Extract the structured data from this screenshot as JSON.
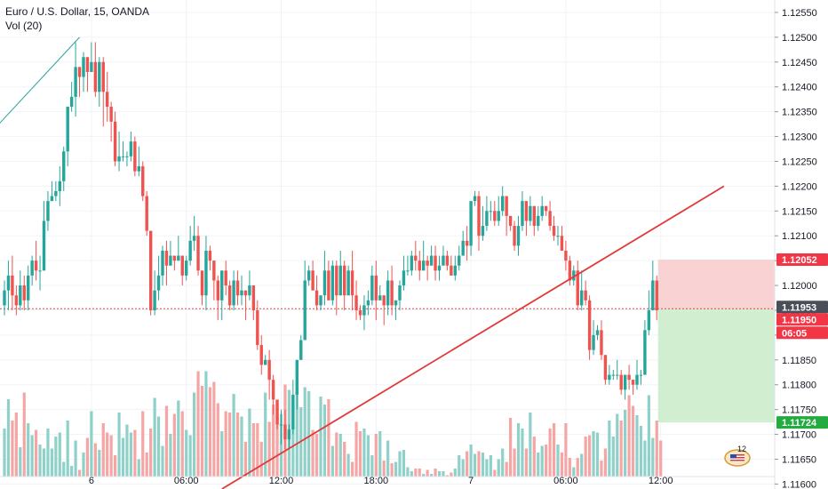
{
  "header": {
    "title": "Euro / U.S. Dollar, 15, OANDA",
    "volume_label": "Vol (20)"
  },
  "badges": {
    "notification_count": "12"
  },
  "colors": {
    "up": "#26a69a",
    "down": "#ef5350",
    "vol_up": "#8fd1c9",
    "vol_down": "#f5a6a4",
    "trendline": "#e03a3a",
    "grid": "#f0f3f7",
    "current_price_line": "#e0454b",
    "stop_zone": "#f8c8c8",
    "target_zone": "#c9ebc9",
    "label_dark": "#4a4e59",
    "label_red": "#f23645",
    "label_green": "#22ab3f"
  },
  "chart_data": {
    "type": "candlestick",
    "symbol": "Euro / U.S. Dollar, 15, OANDA",
    "indicator": "Vol (20)",
    "ylim": [
      1.1159,
      1.12575
    ],
    "y_ticks": [
      "1.11600",
      "1.11650",
      "1.11700",
      "1.11750",
      "1.11800",
      "1.11850",
      "1.11900",
      "1.11950",
      "1.12000",
      "1.12050",
      "1.12100",
      "1.12150",
      "1.12200",
      "1.12250",
      "1.12300",
      "1.12350",
      "1.12400",
      "1.12450",
      "1.12500",
      "1.12550"
    ],
    "x_ticks": [
      {
        "index": 22,
        "label": "6"
      },
      {
        "index": 46,
        "label": "06:00"
      },
      {
        "index": 70,
        "label": "12:00"
      },
      {
        "index": 94,
        "label": "18:00"
      },
      {
        "index": 118,
        "label": "7"
      },
      {
        "index": 142,
        "label": "06:00"
      },
      {
        "index": 166,
        "label": "12:00"
      }
    ],
    "grid": true,
    "price_labels": {
      "stop": "1.12052",
      "current": "1.11953",
      "last": "1.11950",
      "countdown": "06:05",
      "target": "1.11724"
    },
    "position_zone": {
      "start_index": 166,
      "stop": 1.12052,
      "entry": 1.11953,
      "target": 1.11724
    },
    "trendlines": [
      {
        "from": [
          -2,
          1.1232
        ],
        "to": [
          19,
          1.125
        ]
      },
      {
        "from": [
          55,
          1.1159
        ],
        "to": [
          182,
          1.122
        ]
      }
    ],
    "candles": [
      [
        1.1196,
        1.1199,
        1.1201,
        1.1194
      ],
      [
        1.1199,
        1.1202,
        1.1205,
        1.1195
      ],
      [
        1.1202,
        1.1198,
        1.1206,
        1.1195
      ],
      [
        1.1198,
        1.1196,
        1.12,
        1.1194
      ],
      [
        1.1196,
        1.12,
        1.1203,
        1.1195
      ],
      [
        1.12,
        1.1197,
        1.1202,
        1.1195
      ],
      [
        1.1197,
        1.1202,
        1.1204,
        1.1195
      ],
      [
        1.1202,
        1.1205,
        1.1206,
        1.12
      ],
      [
        1.1205,
        1.1203,
        1.1209,
        1.1201
      ],
      [
        1.1203,
        1.1203,
        1.1206,
        1.1199
      ],
      [
        1.1203,
        1.1213,
        1.1217,
        1.1203
      ],
      [
        1.1213,
        1.1217,
        1.1219,
        1.1211
      ],
      [
        1.1217,
        1.1218,
        1.1221,
        1.1217
      ],
      [
        1.1218,
        1.1219,
        1.1221,
        1.1217
      ],
      [
        1.1219,
        1.1221,
        1.1224,
        1.1216
      ],
      [
        1.1221,
        1.1227,
        1.1228,
        1.1219
      ],
      [
        1.1227,
        1.1236,
        1.1236,
        1.1224
      ],
      [
        1.1236,
        1.1238,
        1.1241,
        1.1235
      ],
      [
        1.1238,
        1.1244,
        1.1249,
        1.1234
      ],
      [
        1.1244,
        1.1242,
        1.1244,
        1.1238
      ],
      [
        1.1242,
        1.1246,
        1.1247,
        1.1239
      ],
      [
        1.1246,
        1.1243,
        1.1245,
        1.1239
      ],
      [
        1.1243,
        1.1245,
        1.1249,
        1.1244
      ],
      [
        1.1245,
        1.1239,
        1.1249,
        1.1238
      ],
      [
        1.1239,
        1.1245,
        1.1246,
        1.1236
      ],
      [
        1.1245,
        1.1239,
        1.1246,
        1.1232
      ],
      [
        1.1239,
        1.1236,
        1.1243,
        1.1233
      ],
      [
        1.1236,
        1.1233,
        1.1237,
        1.1229
      ],
      [
        1.1233,
        1.1225,
        1.1235,
        1.1224
      ],
      [
        1.1225,
        1.1226,
        1.1231,
        1.1223
      ],
      [
        1.1226,
        1.1226,
        1.1229,
        1.1225
      ],
      [
        1.1226,
        1.1226,
        1.1227,
        1.1224
      ],
      [
        1.1226,
        1.1229,
        1.1231,
        1.1225
      ],
      [
        1.1229,
        1.1223,
        1.123,
        1.1222
      ],
      [
        1.1223,
        1.1224,
        1.1228,
        1.1222
      ],
      [
        1.1224,
        1.1218,
        1.1225,
        1.1217
      ],
      [
        1.1218,
        1.1211,
        1.1219,
        1.121
      ],
      [
        1.1211,
        1.1195,
        1.1211,
        1.1194
      ],
      [
        1.1195,
        1.1199,
        1.1203,
        1.1194
      ],
      [
        1.1199,
        1.1202,
        1.1206,
        1.1197
      ],
      [
        1.1202,
        1.1207,
        1.1208,
        1.12
      ],
      [
        1.1207,
        1.1204,
        1.1209,
        1.12
      ],
      [
        1.1204,
        1.1206,
        1.1209,
        1.1204
      ],
      [
        1.1206,
        1.1205,
        1.1206,
        1.1203
      ],
      [
        1.1205,
        1.1206,
        1.121,
        1.1205
      ],
      [
        1.1206,
        1.1202,
        1.1206,
        1.12
      ],
      [
        1.1202,
        1.1205,
        1.1206,
        1.1201
      ],
      [
        1.1205,
        1.1209,
        1.1212,
        1.1204
      ],
      [
        1.1209,
        1.121,
        1.1214,
        1.1207
      ],
      [
        1.121,
        1.1203,
        1.1212,
        1.1202
      ],
      [
        1.1203,
        1.1198,
        1.1203,
        1.1196
      ],
      [
        1.1198,
        1.1207,
        1.121,
        1.1195
      ],
      [
        1.1207,
        1.1205,
        1.1208,
        1.1203
      ],
      [
        1.1205,
        1.1201,
        1.1205,
        1.1197
      ],
      [
        1.1201,
        1.1197,
        1.1202,
        1.1193
      ],
      [
        1.1197,
        1.1203,
        1.1203,
        1.1193
      ],
      [
        1.1203,
        1.12,
        1.1205,
        1.1198
      ],
      [
        1.12,
        1.1196,
        1.1201,
        1.1195
      ],
      [
        1.1196,
        1.1201,
        1.1203,
        1.1195
      ],
      [
        1.1201,
        1.1198,
        1.1203,
        1.1196
      ],
      [
        1.1198,
        1.1199,
        1.1202,
        1.1196
      ],
      [
        1.1199,
        1.1198,
        1.1199,
        1.1193
      ],
      [
        1.1198,
        1.12,
        1.1203,
        1.1197
      ],
      [
        1.12,
        1.1195,
        1.12,
        1.1193
      ],
      [
        1.1195,
        1.1188,
        1.1197,
        1.1187
      ],
      [
        1.1188,
        1.1184,
        1.119,
        1.1182
      ],
      [
        1.1184,
        1.1185,
        1.1186,
        1.1184
      ],
      [
        1.1185,
        1.1181,
        1.1187,
        1.1177
      ],
      [
        1.1181,
        1.1177,
        1.1182,
        1.1174
      ],
      [
        1.1177,
        1.1172,
        1.1177,
        1.1171
      ],
      [
        1.1172,
        1.1172,
        1.1175,
        1.1168
      ],
      [
        1.1172,
        1.1169,
        1.1175,
        1.1167
      ],
      [
        1.1169,
        1.1171,
        1.1172,
        1.1167
      ],
      [
        1.1171,
        1.1178,
        1.1181,
        1.117
      ],
      [
        1.1178,
        1.1185,
        1.1185,
        1.1175
      ],
      [
        1.1185,
        1.1189,
        1.119,
        1.1185
      ],
      [
        1.1189,
        1.1201,
        1.1205,
        1.1189
      ],
      [
        1.1201,
        1.1203,
        1.1204,
        1.12
      ],
      [
        1.1203,
        1.1199,
        1.1205,
        1.1199
      ],
      [
        1.1199,
        1.1196,
        1.1202,
        1.1195
      ],
      [
        1.1196,
        1.1198,
        1.1198,
        1.1195
      ],
      [
        1.1198,
        1.1203,
        1.1207,
        1.1196
      ],
      [
        1.1203,
        1.1197,
        1.1205,
        1.1197
      ],
      [
        1.1197,
        1.1204,
        1.1205,
        1.1196
      ],
      [
        1.1204,
        1.1198,
        1.1205,
        1.1194
      ],
      [
        1.1198,
        1.1204,
        1.1207,
        1.1198
      ],
      [
        1.1204,
        1.1198,
        1.1205,
        1.1195
      ],
      [
        1.1198,
        1.1203,
        1.1204,
        1.1198
      ],
      [
        1.1203,
        1.1198,
        1.1207,
        1.1195
      ],
      [
        1.1198,
        1.1195,
        1.1201,
        1.1193
      ],
      [
        1.1195,
        1.1194,
        1.1196,
        1.1193
      ],
      [
        1.1194,
        1.1196,
        1.1198,
        1.1191
      ],
      [
        1.1196,
        1.1197,
        1.1199,
        1.1194
      ],
      [
        1.1197,
        1.1202,
        1.1204,
        1.1196
      ],
      [
        1.1202,
        1.1197,
        1.1205,
        1.1193
      ],
      [
        1.1197,
        1.1198,
        1.12,
        1.1197
      ],
      [
        1.1198,
        1.1196,
        1.1198,
        1.1192
      ],
      [
        1.1196,
        1.1201,
        1.1203,
        1.1194
      ],
      [
        1.1201,
        1.1196,
        1.1204,
        1.1194
      ],
      [
        1.1196,
        1.1197,
        1.1197,
        1.1193
      ],
      [
        1.1197,
        1.12,
        1.1201,
        1.1195
      ],
      [
        1.12,
        1.1203,
        1.1206,
        1.1199
      ],
      [
        1.1203,
        1.1203,
        1.1206,
        1.1202
      ],
      [
        1.1203,
        1.1206,
        1.1207,
        1.1202
      ],
      [
        1.1206,
        1.1205,
        1.1209,
        1.1203
      ],
      [
        1.1205,
        1.1203,
        1.1207,
        1.1201
      ],
      [
        1.1203,
        1.1205,
        1.1209,
        1.1203
      ],
      [
        1.1205,
        1.1204,
        1.1206,
        1.1201
      ],
      [
        1.1204,
        1.1206,
        1.1208,
        1.1204
      ],
      [
        1.1206,
        1.1203,
        1.1208,
        1.1201
      ],
      [
        1.1203,
        1.1204,
        1.1206,
        1.1201
      ],
      [
        1.1204,
        1.1206,
        1.1208,
        1.1205
      ],
      [
        1.1206,
        1.1204,
        1.1207,
        1.1203
      ],
      [
        1.1204,
        1.1202,
        1.1206,
        1.1202
      ],
      [
        1.1202,
        1.1204,
        1.1206,
        1.1201
      ],
      [
        1.1204,
        1.1206,
        1.1208,
        1.1203
      ],
      [
        1.1206,
        1.1209,
        1.1211,
        1.1206
      ],
      [
        1.1209,
        1.1208,
        1.1212,
        1.1205
      ],
      [
        1.1208,
        1.1217,
        1.1217,
        1.1206
      ],
      [
        1.1217,
        1.1218,
        1.1219,
        1.1216
      ],
      [
        1.1218,
        1.121,
        1.1219,
        1.1207
      ],
      [
        1.121,
        1.1212,
        1.1216,
        1.1209
      ],
      [
        1.1212,
        1.1215,
        1.1218,
        1.1211
      ],
      [
        1.1215,
        1.1215,
        1.1217,
        1.1213
      ],
      [
        1.1215,
        1.1213,
        1.1217,
        1.1212
      ],
      [
        1.1213,
        1.1215,
        1.1218,
        1.1212
      ],
      [
        1.1215,
        1.1218,
        1.122,
        1.1214
      ],
      [
        1.1218,
        1.1214,
        1.1218,
        1.121
      ],
      [
        1.1214,
        1.1212,
        1.1214,
        1.1211
      ],
      [
        1.1212,
        1.1208,
        1.1213,
        1.1207
      ],
      [
        1.1208,
        1.1212,
        1.1214,
        1.1206
      ],
      [
        1.1212,
        1.1217,
        1.1219,
        1.1211
      ],
      [
        1.1217,
        1.1213,
        1.1217,
        1.121
      ],
      [
        1.1213,
        1.1216,
        1.1218,
        1.1212
      ],
      [
        1.1216,
        1.1212,
        1.1216,
        1.121
      ],
      [
        1.1212,
        1.1214,
        1.1216,
        1.1211
      ],
      [
        1.1214,
        1.1216,
        1.1218,
        1.1213
      ],
      [
        1.1216,
        1.1215,
        1.1216,
        1.1214
      ],
      [
        1.1215,
        1.1212,
        1.1217,
        1.1211
      ],
      [
        1.1212,
        1.121,
        1.1214,
        1.1209
      ],
      [
        1.121,
        1.121,
        1.1212,
        1.1208
      ],
      [
        1.121,
        1.1207,
        1.1212,
        1.1207
      ],
      [
        1.1207,
        1.1205,
        1.1209,
        1.1203
      ],
      [
        1.1205,
        1.1201,
        1.1206,
        1.12
      ],
      [
        1.1201,
        1.1203,
        1.1204,
        1.12
      ],
      [
        1.1203,
        1.1196,
        1.1205,
        1.1195
      ],
      [
        1.1196,
        1.1199,
        1.1203,
        1.1195
      ],
      [
        1.1199,
        1.1197,
        1.1201,
        1.1196
      ],
      [
        1.1197,
        1.1187,
        1.1198,
        1.1185
      ],
      [
        1.1187,
        1.119,
        1.1193,
        1.1186
      ],
      [
        1.119,
        1.1191,
        1.1192,
        1.1189
      ],
      [
        1.1191,
        1.1186,
        1.1193,
        1.1185
      ],
      [
        1.1186,
        1.1181,
        1.1186,
        1.118
      ],
      [
        1.1181,
        1.1182,
        1.1184,
        1.118
      ],
      [
        1.1182,
        1.1182,
        1.1183,
        1.1181
      ],
      [
        1.1182,
        1.1182,
        1.1185,
        1.1181
      ],
      [
        1.1182,
        1.1179,
        1.1183,
        1.1178
      ],
      [
        1.1179,
        1.1182,
        1.1182,
        1.1177
      ],
      [
        1.1182,
        1.1181,
        1.1184,
        1.1179
      ],
      [
        1.1181,
        1.118,
        1.1181,
        1.1178
      ],
      [
        1.118,
        1.1182,
        1.1185,
        1.1179
      ],
      [
        1.1182,
        1.1182,
        1.1183,
        1.118
      ],
      [
        1.1182,
        1.1191,
        1.1193,
        1.1182
      ],
      [
        1.1191,
        1.1195,
        1.1199,
        1.119
      ],
      [
        1.1195,
        1.1201,
        1.1205,
        1.1195
      ],
      [
        1.1201,
        1.1195,
        1.1202,
        1.1193
      ]
    ],
    "volumes": [
      36,
      58,
      42,
      48,
      22,
      63,
      40,
      31,
      35,
      24,
      21,
      36,
      21,
      30,
      33,
      11,
      42,
      8,
      27,
      5,
      18,
      29,
      49,
      25,
      20,
      40,
      33,
      31,
      16,
      48,
      29,
      39,
      33,
      35,
      13,
      49,
      18,
      36,
      59,
      45,
      23,
      53,
      32,
      47,
      57,
      49,
      35,
      31,
      63,
      79,
      68,
      79,
      67,
      71,
      55,
      34,
      49,
      48,
      62,
      48,
      45,
      26,
      51,
      40,
      40,
      26,
      63,
      41,
      54,
      45,
      47,
      69,
      65,
      59,
      71,
      52,
      67,
      64,
      35,
      32,
      60,
      54,
      58,
      23,
      33,
      32,
      26,
      17,
      11,
      41,
      34,
      36,
      31,
      16,
      32,
      34,
      12,
      27,
      10,
      11,
      19,
      20,
      7,
      4,
      6,
      6,
      2,
      5,
      2,
      6,
      4,
      4,
      1,
      3,
      6,
      16,
      13,
      19,
      24,
      17,
      19,
      18,
      13,
      16,
      5,
      13,
      21,
      11,
      44,
      21,
      40,
      36,
      21,
      48,
      30,
      18,
      23,
      24,
      36,
      40,
      24,
      18,
      40,
      14,
      7,
      14,
      17,
      30,
      31,
      34,
      33,
      12,
      21,
      42,
      30,
      47,
      42,
      50,
      61,
      53,
      46,
      38,
      27,
      61,
      29,
      42,
      27
    ]
  }
}
